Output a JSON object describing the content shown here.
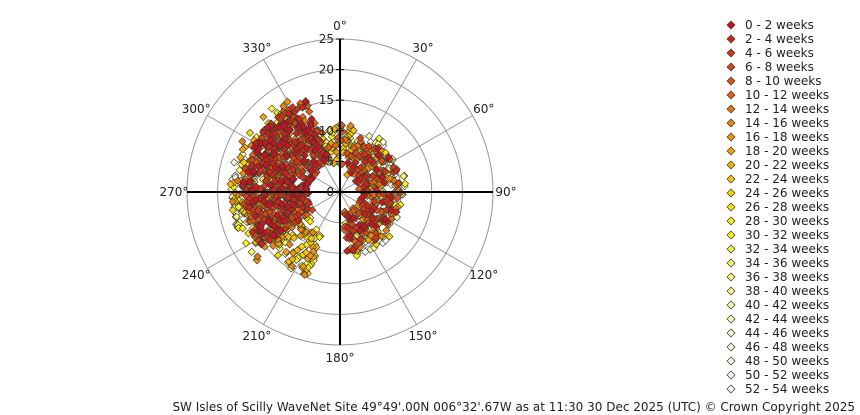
{
  "chart_data": {
    "type": "scatter",
    "subtype": "polar",
    "caption": "SW Isles of Scilly WaveNet Site 49°49'.00N 006°32'.67W as at 11:30 30 Dec 2025 (UTC) © Crown Copyright 2025",
    "radial_axis": {
      "range": [
        0,
        25
      ],
      "ticks": [
        0,
        5,
        10,
        15,
        20,
        25
      ],
      "tick_labels": [
        "0",
        "5",
        "10",
        "15",
        "20",
        "25"
      ]
    },
    "angular_axis": {
      "direction": "clockwise",
      "zero": "north",
      "ticks": [
        0,
        30,
        60,
        90,
        120,
        150,
        180,
        210,
        240,
        270,
        300,
        330
      ],
      "tick_labels": [
        "0°",
        "30°",
        "60°",
        "90°",
        "120°",
        "150°",
        "180°",
        "210°",
        "240°",
        "270°",
        "300°",
        "330°"
      ]
    },
    "grid": true,
    "legend_position": "right",
    "series": [
      {
        "name": "0 - 2 weeks",
        "color": "#c8141e"
      },
      {
        "name": "2 - 4 weeks",
        "color": "#cc2418"
      },
      {
        "name": "4 - 6 weeks",
        "color": "#d23416"
      },
      {
        "name": "6 - 8 weeks",
        "color": "#d84414"
      },
      {
        "name": "8 - 10 weeks",
        "color": "#de5412"
      },
      {
        "name": "10 - 12 weeks",
        "color": "#e46410"
      },
      {
        "name": "12 - 14 weeks",
        "color": "#e8740e"
      },
      {
        "name": "14 - 16 weeks",
        "color": "#ec840c"
      },
      {
        "name": "16 - 18 weeks",
        "color": "#f0940a"
      },
      {
        "name": "18 - 20 weeks",
        "color": "#f2a408"
      },
      {
        "name": "20 - 22 weeks",
        "color": "#f4b406"
      },
      {
        "name": "22 - 24 weeks",
        "color": "#f6c404"
      },
      {
        "name": "24 - 26 weeks",
        "color": "#f8d402"
      },
      {
        "name": "26 - 28 weeks",
        "color": "#fae200"
      },
      {
        "name": "28 - 30 weeks",
        "color": "#fbee00"
      },
      {
        "name": "30 - 32 weeks",
        "color": "#fcf41a"
      },
      {
        "name": "32 - 34 weeks",
        "color": "#fcf63a"
      },
      {
        "name": "34 - 36 weeks",
        "color": "#fdf85a"
      },
      {
        "name": "36 - 38 weeks",
        "color": "#fdf97a"
      },
      {
        "name": "38 - 40 weeks",
        "color": "#fdfa92"
      },
      {
        "name": "40 - 42 weeks",
        "color": "#fefbaa"
      },
      {
        "name": "42 - 44 weeks",
        "color": "#fefcbe"
      },
      {
        "name": "44 - 46 weeks",
        "color": "#fefcce"
      },
      {
        "name": "46 - 48 weeks",
        "color": "#fefddc"
      },
      {
        "name": "48 - 50 weeks",
        "color": "#fefde8"
      },
      {
        "name": "50 - 52 weeks",
        "color": "#fefef2"
      },
      {
        "name": "52 - 54 weeks",
        "color": "#ffffff"
      }
    ],
    "scatter_clusters": [
      {
        "dir_range": [
          235,
          340
        ],
        "r_range": [
          5,
          16
        ],
        "weeks_range": [
          0,
          14
        ],
        "count": 700
      },
      {
        "dir_range": [
          230,
          330
        ],
        "r_range": [
          9,
          18
        ],
        "weeks_range": [
          12,
          40
        ],
        "count": 220
      },
      {
        "dir_range": [
          200,
          250
        ],
        "r_range": [
          6,
          15
        ],
        "weeks_range": [
          14,
          40
        ],
        "count": 130
      },
      {
        "dir_range": [
          15,
          175
        ],
        "r_range": [
          3,
          10
        ],
        "weeks_range": [
          0,
          20
        ],
        "count": 280
      },
      {
        "dir_range": [
          20,
          170
        ],
        "r_range": [
          5,
          11
        ],
        "weeks_range": [
          24,
          54
        ],
        "count": 140
      },
      {
        "dir_range": [
          330,
          380
        ],
        "r_range": [
          4,
          11
        ],
        "weeks_range": [
          6,
          40
        ],
        "count": 90
      },
      {
        "dir_range": [
          250,
          300
        ],
        "r_range": [
          14,
          18
        ],
        "weeks_range": [
          40,
          54
        ],
        "count": 60
      }
    ]
  }
}
